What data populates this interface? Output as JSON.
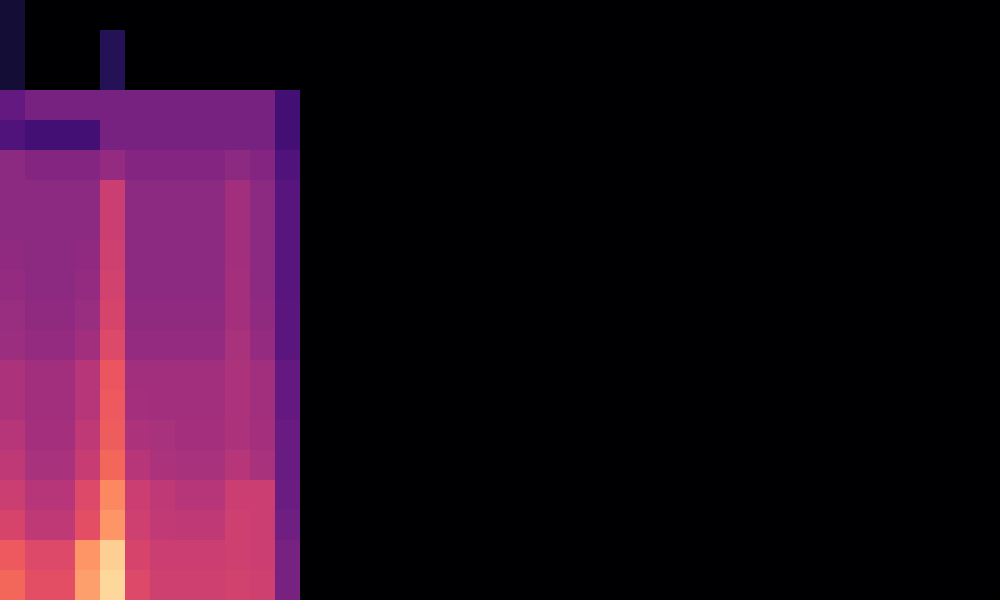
{
  "chart_data": {
    "type": "heatmap",
    "color": "magma",
    "tick_labels": false,
    "value_range": [
      0,
      100
    ],
    "cells": [
      [
        10,
        0,
        0,
        0,
        0,
        0,
        0,
        0,
        0,
        0,
        0,
        0,
        0,
        0,
        0,
        0,
        0,
        0,
        0,
        0,
        0,
        0,
        0,
        0,
        0,
        0,
        0,
        0,
        0,
        0,
        0,
        0,
        0,
        0,
        0,
        0,
        0,
        0,
        0,
        0
      ],
      [
        10,
        0,
        0,
        0,
        15,
        0,
        0,
        0,
        0,
        0,
        0,
        0,
        0,
        0,
        0,
        0,
        0,
        0,
        0,
        0,
        0,
        0,
        0,
        0,
        0,
        0,
        0,
        0,
        0,
        0,
        0,
        0,
        0,
        0,
        0,
        0,
        0,
        0,
        0,
        0
      ],
      [
        10,
        0,
        0,
        0,
        15,
        0,
        0,
        0,
        0,
        0,
        0,
        0,
        0,
        0,
        0,
        0,
        0,
        0,
        0,
        0,
        0,
        0,
        0,
        0,
        0,
        0,
        0,
        0,
        0,
        0,
        0,
        0,
        0,
        0,
        0,
        0,
        0,
        0,
        0,
        0
      ],
      [
        30,
        35,
        35,
        35,
        35,
        35,
        35,
        35,
        35,
        35,
        35,
        22,
        0,
        0,
        0,
        0,
        0,
        0,
        0,
        0,
        0,
        0,
        0,
        0,
        0,
        0,
        0,
        0,
        0,
        0,
        0,
        0,
        0,
        0,
        0,
        0,
        0,
        0,
        0,
        0
      ],
      [
        25,
        22,
        22,
        22,
        35,
        35,
        35,
        35,
        35,
        35,
        35,
        22,
        0,
        0,
        0,
        0,
        0,
        0,
        0,
        0,
        0,
        0,
        0,
        0,
        0,
        0,
        0,
        0,
        0,
        0,
        0,
        0,
        0,
        0,
        0,
        0,
        0,
        0,
        0,
        0
      ],
      [
        40,
        38,
        38,
        38,
        42,
        38,
        38,
        38,
        38,
        40,
        38,
        25,
        0,
        0,
        0,
        0,
        0,
        0,
        0,
        0,
        0,
        0,
        0,
        0,
        0,
        0,
        0,
        0,
        0,
        0,
        0,
        0,
        0,
        0,
        0,
        0,
        0,
        0,
        0,
        0
      ],
      [
        40,
        40,
        40,
        40,
        55,
        40,
        40,
        40,
        40,
        45,
        40,
        27,
        0,
        0,
        0,
        0,
        0,
        0,
        0,
        0,
        0,
        0,
        0,
        0,
        0,
        0,
        0,
        0,
        0,
        0,
        0,
        0,
        0,
        0,
        0,
        0,
        0,
        0,
        0,
        0
      ],
      [
        40,
        40,
        40,
        40,
        55,
        40,
        40,
        40,
        40,
        45,
        40,
        27,
        0,
        0,
        0,
        0,
        0,
        0,
        0,
        0,
        0,
        0,
        0,
        0,
        0,
        0,
        0,
        0,
        0,
        0,
        0,
        0,
        0,
        0,
        0,
        0,
        0,
        0,
        0,
        0
      ],
      [
        41,
        40,
        40,
        41,
        56,
        40,
        40,
        40,
        40,
        45,
        40,
        27,
        0,
        0,
        0,
        0,
        0,
        0,
        0,
        0,
        0,
        0,
        0,
        0,
        0,
        0,
        0,
        0,
        0,
        0,
        0,
        0,
        0,
        0,
        0,
        0,
        0,
        0,
        0,
        0
      ],
      [
        42,
        40,
        40,
        42,
        57,
        40,
        40,
        40,
        40,
        46,
        40,
        27,
        0,
        0,
        0,
        0,
        0,
        0,
        0,
        0,
        0,
        0,
        0,
        0,
        0,
        0,
        0,
        0,
        0,
        0,
        0,
        0,
        0,
        0,
        0,
        0,
        0,
        0,
        0,
        0
      ],
      [
        43,
        41,
        41,
        43,
        58,
        41,
        41,
        41,
        41,
        46,
        41,
        28,
        0,
        0,
        0,
        0,
        0,
        0,
        0,
        0,
        0,
        0,
        0,
        0,
        0,
        0,
        0,
        0,
        0,
        0,
        0,
        0,
        0,
        0,
        0,
        0,
        0,
        0,
        0,
        0
      ],
      [
        44,
        42,
        42,
        45,
        60,
        42,
        42,
        42,
        42,
        47,
        42,
        28,
        0,
        0,
        0,
        0,
        0,
        0,
        0,
        0,
        0,
        0,
        0,
        0,
        0,
        0,
        0,
        0,
        0,
        0,
        0,
        0,
        0,
        0,
        0,
        0,
        0,
        0,
        0,
        0
      ],
      [
        48,
        45,
        45,
        50,
        64,
        45,
        45,
        45,
        45,
        48,
        45,
        30,
        0,
        0,
        0,
        0,
        0,
        0,
        0,
        0,
        0,
        0,
        0,
        0,
        0,
        0,
        0,
        0,
        0,
        0,
        0,
        0,
        0,
        0,
        0,
        0,
        0,
        0,
        0,
        0
      ],
      [
        48,
        45,
        45,
        50,
        65,
        46,
        45,
        45,
        45,
        48,
        45,
        30,
        0,
        0,
        0,
        0,
        0,
        0,
        0,
        0,
        0,
        0,
        0,
        0,
        0,
        0,
        0,
        0,
        0,
        0,
        0,
        0,
        0,
        0,
        0,
        0,
        0,
        0,
        0,
        0
      ],
      [
        50,
        46,
        46,
        52,
        66,
        48,
        47,
        46,
        46,
        48,
        46,
        31,
        0,
        0,
        0,
        0,
        0,
        0,
        0,
        0,
        0,
        0,
        0,
        0,
        0,
        0,
        0,
        0,
        0,
        0,
        0,
        0,
        0,
        0,
        0,
        0,
        0,
        0,
        0,
        0
      ],
      [
        52,
        47,
        47,
        54,
        68,
        50,
        48,
        47,
        47,
        50,
        47,
        31,
        0,
        0,
        0,
        0,
        0,
        0,
        0,
        0,
        0,
        0,
        0,
        0,
        0,
        0,
        0,
        0,
        0,
        0,
        0,
        0,
        0,
        0,
        0,
        0,
        0,
        0,
        0,
        0
      ],
      [
        55,
        50,
        50,
        60,
        75,
        55,
        52,
        50,
        50,
        55,
        55,
        32,
        0,
        0,
        0,
        0,
        0,
        0,
        0,
        0,
        0,
        0,
        0,
        0,
        0,
        0,
        0,
        0,
        0,
        0,
        0,
        0,
        0,
        0,
        0,
        0,
        0,
        0,
        0,
        0
      ],
      [
        58,
        52,
        52,
        62,
        78,
        56,
        53,
        52,
        52,
        56,
        55,
        33,
        0,
        0,
        0,
        0,
        0,
        0,
        0,
        0,
        0,
        0,
        0,
        0,
        0,
        0,
        0,
        0,
        0,
        0,
        0,
        0,
        0,
        0,
        0,
        0,
        0,
        0,
        0,
        0
      ],
      [
        65,
        60,
        60,
        78,
        90,
        58,
        55,
        55,
        55,
        56,
        55,
        35,
        0,
        0,
        0,
        0,
        0,
        0,
        0,
        0,
        0,
        0,
        0,
        0,
        0,
        0,
        0,
        0,
        0,
        0,
        0,
        0,
        0,
        0,
        0,
        0,
        0,
        0,
        0,
        0
      ],
      [
        68,
        62,
        62,
        80,
        92,
        60,
        56,
        56,
        56,
        57,
        56,
        35,
        0,
        0,
        0,
        0,
        0,
        0,
        0,
        0,
        0,
        0,
        0,
        0,
        0,
        0,
        0,
        0,
        0,
        0,
        0,
        0,
        0,
        0,
        0,
        0,
        0,
        0,
        0,
        0
      ]
    ]
  }
}
